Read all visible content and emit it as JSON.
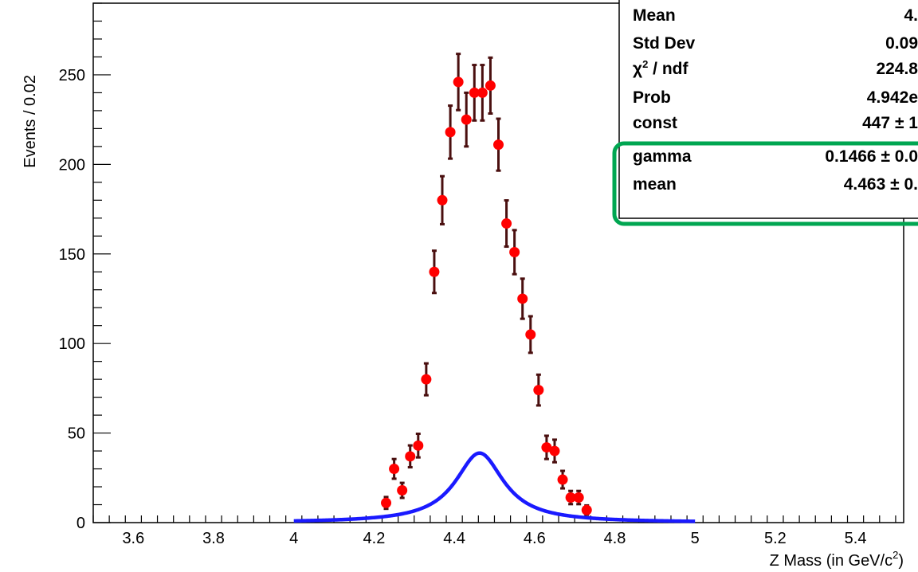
{
  "colors": {
    "fit": "#1a1aff",
    "points": "#ff0000",
    "errors": "#4a0f0f",
    "highlight": "#00a651",
    "axis": "#000000"
  },
  "chart_data": {
    "type": "scatter",
    "xlabel": "Z Mass (in GeV/c²)",
    "xlabel_parts": {
      "main": "Z Mass (in GeV/c",
      "sup": "2",
      "tail": ")"
    },
    "ylabel": "Events / 0.02",
    "xlim": [
      3.5,
      5.52
    ],
    "ylim": [
      0,
      290
    ],
    "x_ticks": [
      {
        "value": 3.6,
        "label": "3.6"
      },
      {
        "value": 3.8,
        "label": "3.8"
      },
      {
        "value": 4.0,
        "label": "4"
      },
      {
        "value": 4.2,
        "label": "4.2"
      },
      {
        "value": 4.4,
        "label": "4.4"
      },
      {
        "value": 4.6,
        "label": "4.6"
      },
      {
        "value": 4.8,
        "label": "4.8"
      },
      {
        "value": 5.0,
        "label": "5"
      },
      {
        "value": 5.2,
        "label": "5.2"
      },
      {
        "value": 5.4,
        "label": "5.4"
      }
    ],
    "y_ticks": [
      {
        "value": 0,
        "label": "0"
      },
      {
        "value": 50,
        "label": "50"
      },
      {
        "value": 100,
        "label": "100"
      },
      {
        "value": 150,
        "label": "150"
      },
      {
        "value": 200,
        "label": "200"
      },
      {
        "value": 250,
        "label": "250"
      }
    ],
    "series": [
      {
        "kind": "points_with_errors",
        "x": [
          4.23,
          4.25,
          4.27,
          4.29,
          4.31,
          4.33,
          4.35,
          4.37,
          4.39,
          4.41,
          4.43,
          4.45,
          4.47,
          4.49,
          4.51,
          4.53,
          4.55,
          4.57,
          4.59,
          4.61,
          4.63,
          4.65,
          4.67,
          4.69,
          4.71,
          4.73
        ],
        "y": [
          11,
          30,
          18,
          37,
          43,
          80,
          140,
          180,
          218,
          246,
          225,
          240,
          240,
          244,
          211,
          167,
          151,
          125,
          105,
          74,
          42,
          40,
          24,
          14,
          14,
          7
        ],
        "err": [
          3.3,
          5.5,
          4.2,
          6.1,
          6.6,
          8.9,
          11.8,
          13.4,
          14.8,
          15.7,
          15.0,
          15.5,
          15.5,
          15.6,
          14.5,
          12.9,
          12.3,
          11.2,
          10.2,
          8.6,
          6.5,
          6.3,
          4.9,
          3.7,
          3.7,
          2.6
        ]
      },
      {
        "kind": "breit_wigner_fit",
        "const": 447,
        "gamma": 0.1466,
        "mean": 4.463,
        "x_range": [
          4.0,
          5.0
        ]
      }
    ],
    "stats_box": [
      {
        "label": "Mean",
        "value": "4."
      },
      {
        "label": "Std Dev",
        "value": "0.09"
      },
      {
        "label": "χ² / ndf",
        "value": "224.8"
      },
      {
        "label": "Prob",
        "value": "4.942e"
      },
      {
        "label": "const",
        "value": "447  ± 1"
      },
      {
        "label": "gamma",
        "value": "0.1466 ± 0.0"
      },
      {
        "label": "mean",
        "value": "4.463 ± 0."
      }
    ],
    "highlight_rows": [
      "gamma",
      "mean"
    ]
  }
}
